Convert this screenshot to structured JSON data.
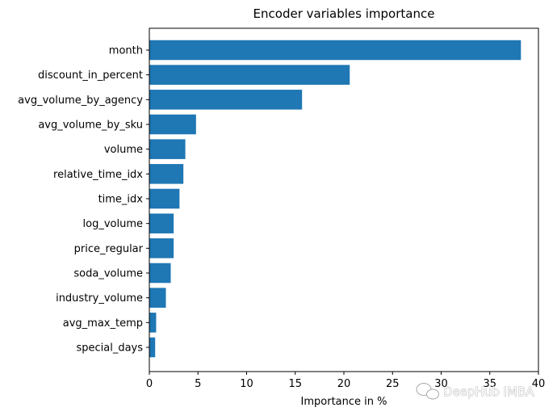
{
  "chart_data": {
    "type": "bar",
    "orientation": "horizontal",
    "title": "Encoder variables importance",
    "xlabel": "Importance in %",
    "ylabel": "",
    "xlim": [
      0,
      40
    ],
    "xticks": [
      "0",
      "5",
      "10",
      "15",
      "20",
      "25",
      "30",
      "35",
      "40"
    ],
    "categories": [
      "month",
      "discount_in_percent",
      "avg_volume_by_agency",
      "avg_volume_by_sku",
      "volume",
      "relative_time_idx",
      "time_idx",
      "log_volume",
      "price_regular",
      "soda_volume",
      "industry_volume",
      "avg_max_temp",
      "special_days"
    ],
    "values": [
      38.2,
      20.6,
      15.7,
      4.8,
      3.7,
      3.5,
      3.1,
      2.5,
      2.5,
      2.2,
      1.7,
      0.7,
      0.6
    ],
    "bar_color": "#1f77b4",
    "grid": false,
    "legend": "none"
  },
  "watermark": {
    "text": "DeepHub IMBA",
    "icon": "wechat-icon"
  }
}
